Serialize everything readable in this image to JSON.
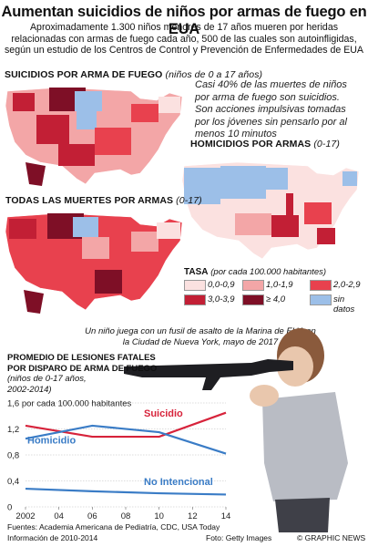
{
  "title": "Aumentan suicidios de niños por armas de fuego en EUA",
  "subtitle": "Aproximadamente 1.300 niños menores de 17 años mueren por heridas relacionadas con armas de fuego cada año, 500 de las cuales son autoinfligidas, según un estudio de los Centros de Control y Prevención de Enfermedades de EUA",
  "maps": {
    "suicides": {
      "title": "SUICIDIOS POR ARMA DE FUEGO",
      "note": "(niños de 0 a 17 años)"
    },
    "homicides": {
      "title": "HOMICIDIOS POR ARMAS",
      "note": "(0-17)"
    },
    "all_deaths": {
      "title": "TODAS LAS MUERTES POR ARMAS",
      "note": "(0-17)"
    }
  },
  "callout": "Casi 40% de las muertes de niños por arma de fuego son suicidios. Son acciones impulsivas tomadas por los jóvenes sin pensarlo por al menos 10 minutos",
  "legend": {
    "title_bold": "TASA",
    "title_rest": "(por cada 100.000 habitantes)",
    "items": [
      {
        "label": "0,0-0,9",
        "color": "#fbe1e0"
      },
      {
        "label": "1,0-1,9",
        "color": "#f3a6a7"
      },
      {
        "label": "2,0-2,9",
        "color": "#e8414e"
      },
      {
        "label": "3,0-3,9",
        "color": "#c21f35"
      },
      {
        "label": "≥ 4,0",
        "color": "#7e0f26"
      },
      {
        "label": "sin datos",
        "color": "#9cbfe8"
      }
    ]
  },
  "photo_caption": "Un niño juega con un fusil de asalto de la Marina de EUA en la Ciudad de Nueva York, mayo de 2017",
  "chart_heading": {
    "line1": "PROMEDIO DE LESIONES FATALES",
    "line2": "POR DISPARO DE ARMA DE FUEGO",
    "sub1": "(niños de 0-17 años,",
    "sub2": "2002-2014)"
  },
  "chart_data": {
    "type": "line",
    "ylabel": "por cada 100.000 habitantes",
    "x": [
      2002,
      2006,
      2010,
      2014
    ],
    "xticks": [
      "2002",
      "04",
      "06",
      "08",
      "10",
      "12",
      "14"
    ],
    "xtick_values": [
      2002,
      2004,
      2006,
      2008,
      2010,
      2012,
      2014
    ],
    "ylim": [
      0,
      1.6
    ],
    "yticks": [
      0,
      0.4,
      0.8,
      1.2,
      1.6
    ],
    "ytick_labels": [
      "0",
      "0,4",
      "0,8",
      "1,2",
      "1,6"
    ],
    "top_label": "1,6",
    "series": [
      {
        "name": "Suicidio",
        "color": "#d7233b",
        "values": [
          1.25,
          1.08,
          1.08,
          1.45
        ]
      },
      {
        "name": "Homicidio",
        "color": "#3a7cc6",
        "values": [
          1.05,
          1.25,
          1.15,
          0.82
        ]
      },
      {
        "name": "No Intencional",
        "color": "#3a7cc6",
        "values": [
          0.28,
          0.24,
          0.21,
          0.19
        ]
      }
    ]
  },
  "footer": {
    "sources": "Fuentes: Academia Americana de Pediatría, CDC, USA Today",
    "info": "Información de 2010-2014",
    "photo": "Foto: Getty Images",
    "brand": "© GRAPHIC NEWS"
  }
}
